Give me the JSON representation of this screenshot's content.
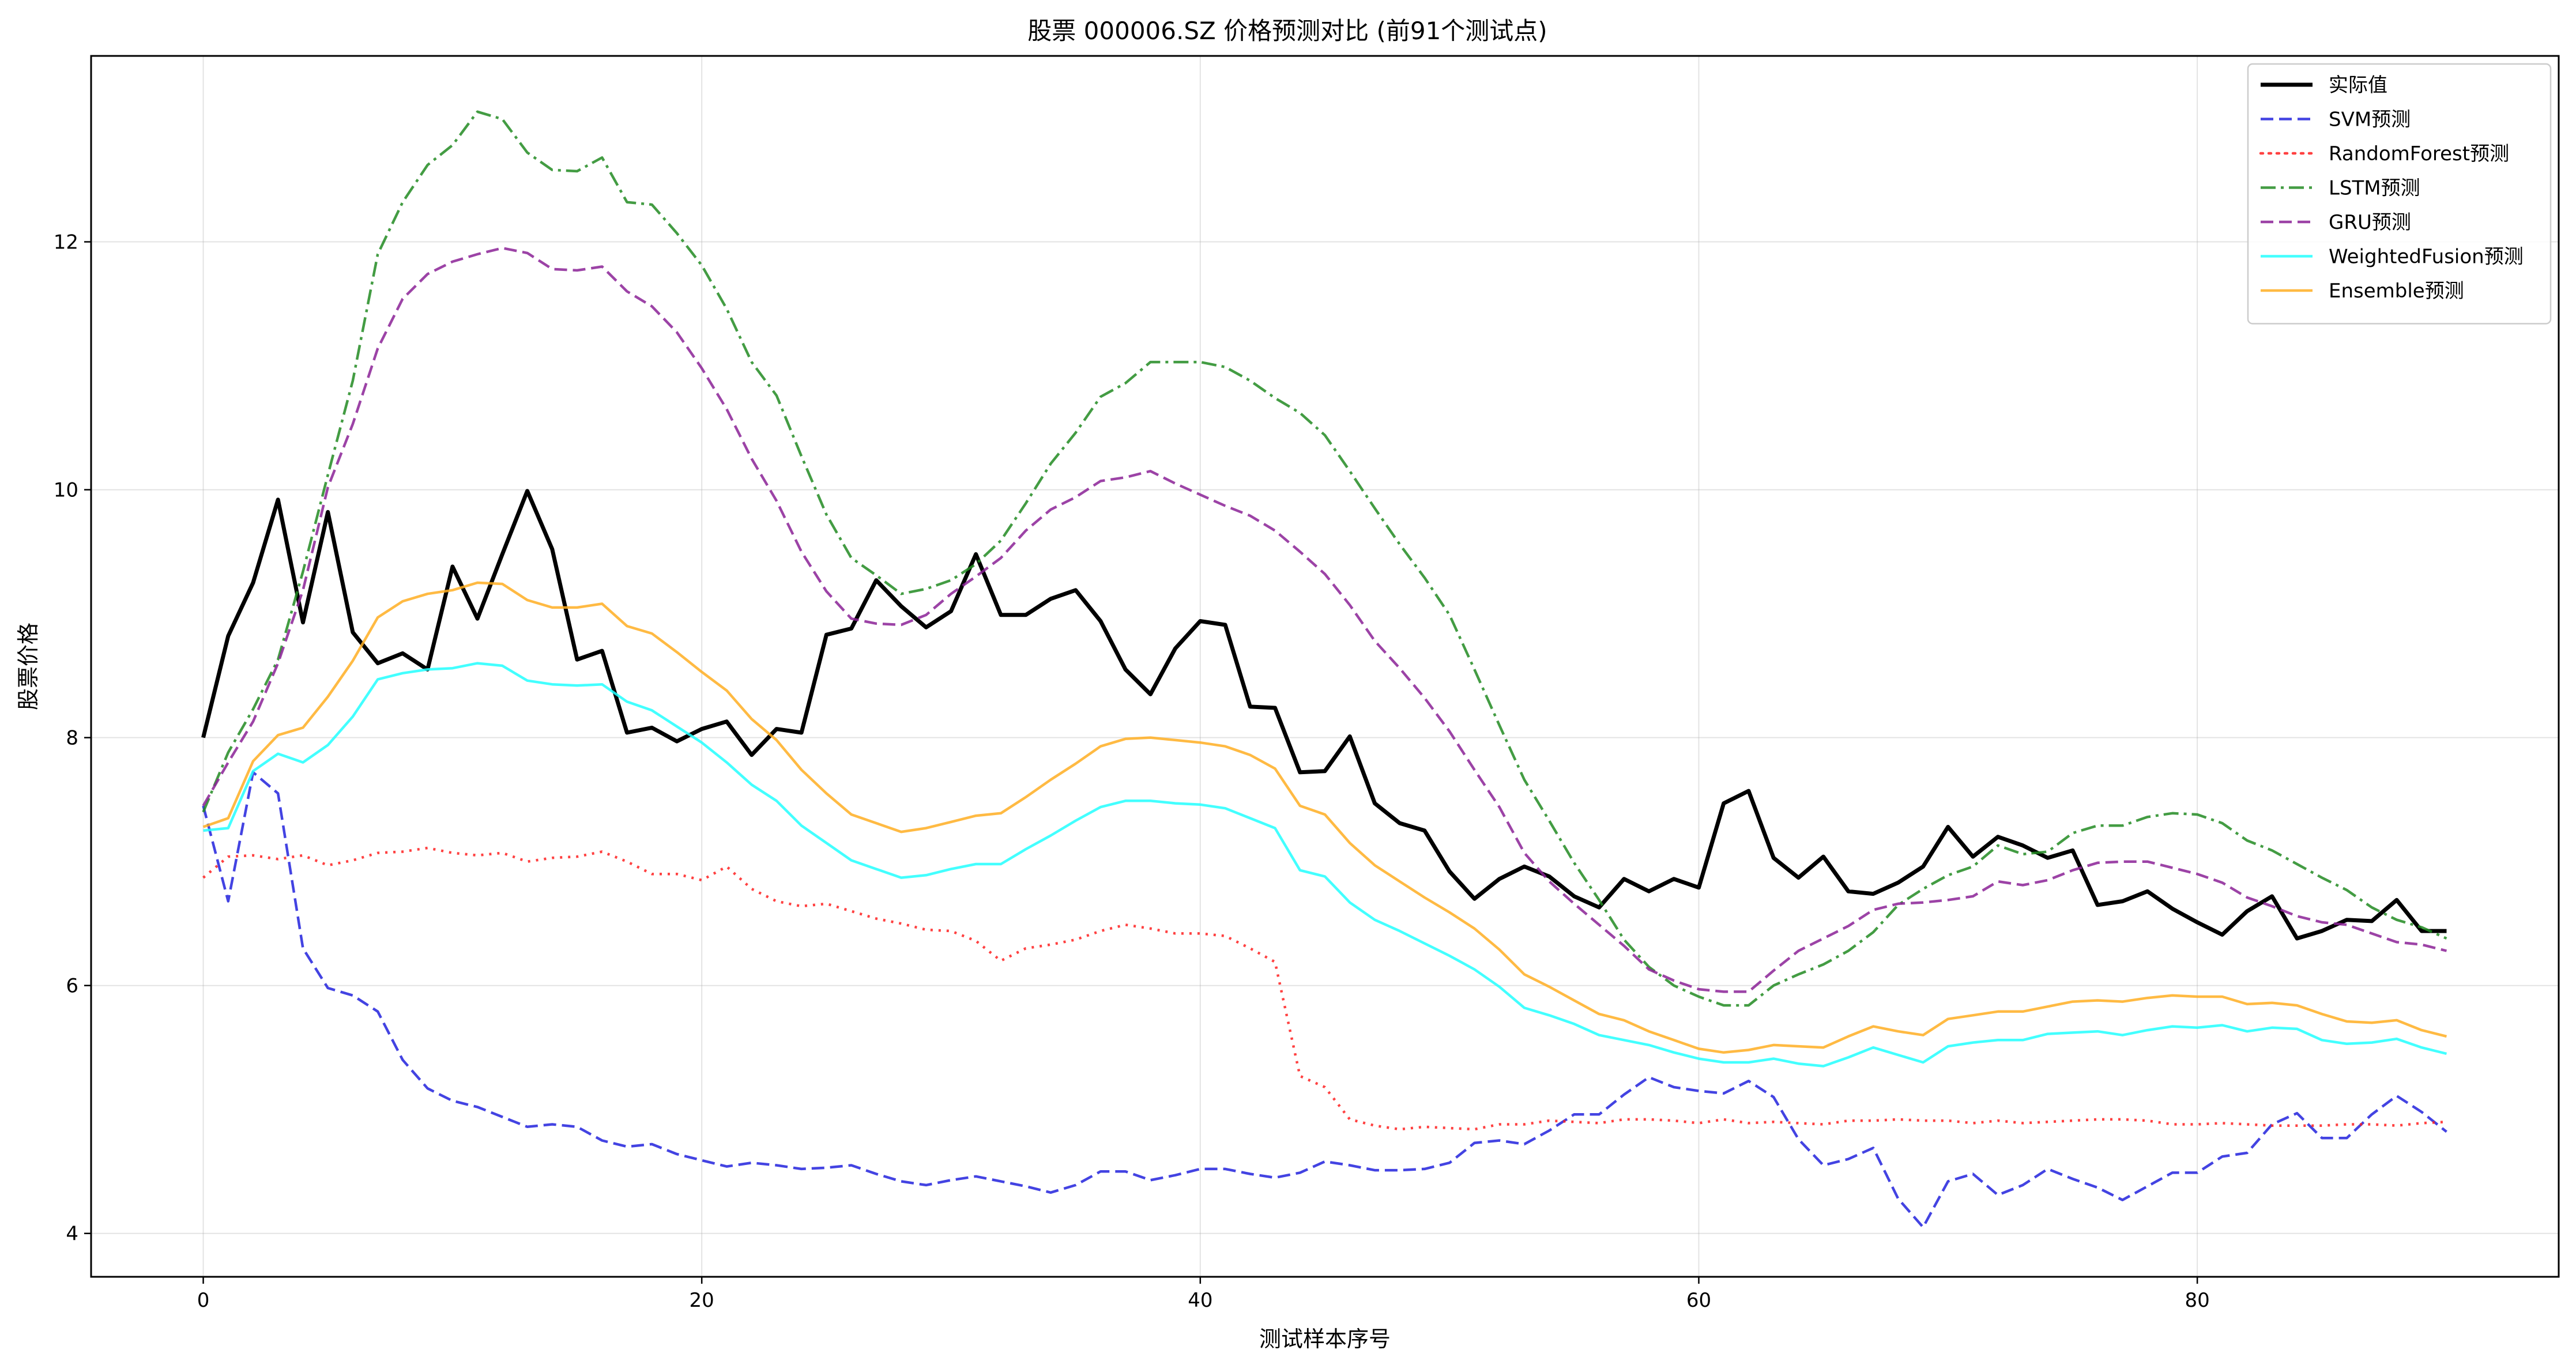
{
  "chart_data": {
    "type": "line",
    "title": "股票 000006.SZ 价格预测对比 (前91个测试点)",
    "xlabel": "测试样本序号",
    "ylabel": "股票价格",
    "xlim": [
      -4.5,
      94.5
    ],
    "ylim": [
      3.65,
      13.5
    ],
    "xticks": [
      0,
      20,
      40,
      60,
      80
    ],
    "yticks": [
      4,
      6,
      8,
      10,
      12
    ],
    "grid": true,
    "legend_position": "top-right",
    "series": [
      {
        "name": "实际值",
        "color": "#000000",
        "dash": "solid",
        "weight": "bold",
        "values": [
          8.0,
          8.82,
          9.25,
          9.92,
          8.93,
          9.82,
          8.85,
          8.6,
          8.68,
          8.55,
          9.38,
          8.96,
          9.48,
          9.99,
          9.52,
          8.63,
          8.7,
          8.04,
          8.08,
          7.97,
          8.07,
          8.13,
          7.86,
          8.07,
          8.04,
          8.83,
          8.88,
          9.27,
          9.06,
          8.89,
          9.02,
          9.48,
          8.99,
          8.99,
          9.12,
          9.19,
          8.94,
          8.55,
          8.35,
          8.72,
          8.94,
          8.91,
          8.25,
          8.24,
          7.72,
          7.73,
          8.01,
          7.47,
          7.31,
          7.25,
          6.92,
          6.7,
          6.86,
          6.96,
          6.88,
          6.72,
          6.63,
          6.86,
          6.76,
          6.86,
          6.79,
          7.47,
          7.57,
          7.03,
          6.87,
          7.04,
          6.76,
          6.74,
          6.83,
          6.96,
          7.28,
          7.04,
          7.2,
          7.13,
          7.03,
          7.09,
          6.65,
          6.68,
          6.76,
          6.62,
          6.51,
          6.41,
          6.6,
          6.72,
          6.38,
          6.44,
          6.53,
          6.52,
          6.69,
          6.44,
          6.44
        ]
      },
      {
        "name": "SVM预测",
        "color": "#2222dd",
        "dash": "dashed",
        "weight": "normal",
        "values": [
          7.45,
          6.68,
          7.72,
          7.55,
          6.3,
          5.98,
          5.92,
          5.79,
          5.4,
          5.17,
          5.07,
          5.02,
          4.94,
          4.86,
          4.88,
          4.86,
          4.75,
          4.7,
          4.72,
          4.64,
          4.59,
          4.54,
          4.57,
          4.55,
          4.52,
          4.53,
          4.55,
          4.48,
          4.42,
          4.39,
          4.43,
          4.46,
          4.42,
          4.38,
          4.33,
          4.39,
          4.5,
          4.5,
          4.43,
          4.47,
          4.52,
          4.52,
          4.48,
          4.45,
          4.49,
          4.58,
          4.55,
          4.51,
          4.51,
          4.52,
          4.57,
          4.73,
          4.75,
          4.72,
          4.83,
          4.96,
          4.96,
          5.12,
          5.26,
          5.18,
          5.15,
          5.13,
          5.23,
          5.1,
          4.76,
          4.55,
          4.6,
          4.69,
          4.28,
          4.05,
          4.42,
          4.48,
          4.31,
          4.39,
          4.52,
          4.44,
          4.37,
          4.27,
          4.38,
          4.49,
          4.49,
          4.62,
          4.65,
          4.88,
          4.97,
          4.77,
          4.77,
          4.96,
          5.11,
          4.98,
          4.82
        ]
      },
      {
        "name": "RandomForest预测",
        "color": "#ff2020",
        "dash": "dotted",
        "weight": "normal",
        "values": [
          6.87,
          7.04,
          7.05,
          7.02,
          7.05,
          6.97,
          7.01,
          7.07,
          7.08,
          7.11,
          7.07,
          7.05,
          7.07,
          7.0,
          7.03,
          7.04,
          7.08,
          7.0,
          6.9,
          6.9,
          6.85,
          6.96,
          6.78,
          6.68,
          6.64,
          6.66,
          6.6,
          6.54,
          6.5,
          6.45,
          6.44,
          6.36,
          6.2,
          6.3,
          6.33,
          6.37,
          6.44,
          6.49,
          6.46,
          6.42,
          6.42,
          6.4,
          6.3,
          6.19,
          5.27,
          5.18,
          4.92,
          4.87,
          4.84,
          4.86,
          4.85,
          4.84,
          4.88,
          4.88,
          4.91,
          4.9,
          4.89,
          4.92,
          4.92,
          4.91,
          4.89,
          4.92,
          4.89,
          4.9,
          4.89,
          4.88,
          4.91,
          4.91,
          4.92,
          4.91,
          4.91,
          4.89,
          4.91,
          4.89,
          4.9,
          4.91,
          4.92,
          4.92,
          4.91,
          4.88,
          4.88,
          4.89,
          4.88,
          4.87,
          4.87,
          4.87,
          4.88,
          4.88,
          4.87,
          4.89,
          4.9
        ]
      },
      {
        "name": "LSTM预测",
        "color": "#228b22",
        "dash": "dashdot",
        "weight": "normal",
        "values": [
          7.4,
          7.88,
          8.23,
          8.63,
          9.34,
          10.12,
          10.88,
          11.9,
          12.32,
          12.62,
          12.78,
          13.05,
          12.99,
          12.72,
          12.58,
          12.57,
          12.68,
          12.32,
          12.3,
          12.07,
          11.81,
          11.46,
          11.03,
          10.76,
          10.27,
          9.8,
          9.45,
          9.31,
          9.16,
          9.2,
          9.27,
          9.4,
          9.59,
          9.89,
          10.21,
          10.46,
          10.75,
          10.86,
          11.03,
          11.03,
          11.03,
          10.99,
          10.88,
          10.74,
          10.62,
          10.44,
          10.15,
          9.85,
          9.56,
          9.29,
          8.99,
          8.55,
          8.1,
          7.66,
          7.33,
          6.99,
          6.69,
          6.37,
          6.15,
          6.0,
          5.91,
          5.84,
          5.84,
          6.0,
          6.09,
          6.17,
          6.28,
          6.43,
          6.65,
          6.78,
          6.89,
          6.96,
          7.13,
          7.06,
          7.08,
          7.23,
          7.29,
          7.29,
          7.36,
          7.39,
          7.38,
          7.31,
          7.17,
          7.09,
          6.98,
          6.87,
          6.77,
          6.63,
          6.53,
          6.47,
          6.38
        ]
      },
      {
        "name": "GRU预测",
        "color": "#8b2296",
        "dash": "dashed",
        "weight": "normal",
        "values": [
          7.45,
          7.8,
          8.13,
          8.6,
          9.19,
          10.02,
          10.53,
          11.14,
          11.54,
          11.74,
          11.84,
          11.9,
          11.95,
          11.91,
          11.78,
          11.77,
          11.8,
          11.6,
          11.48,
          11.27,
          10.98,
          10.65,
          10.25,
          9.91,
          9.5,
          9.18,
          8.96,
          8.92,
          8.91,
          8.99,
          9.16,
          9.3,
          9.45,
          9.67,
          9.84,
          9.94,
          10.07,
          10.1,
          10.15,
          10.05,
          9.96,
          9.87,
          9.79,
          9.67,
          9.5,
          9.32,
          9.07,
          8.78,
          8.56,
          8.32,
          8.05,
          7.74,
          7.44,
          7.07,
          6.84,
          6.66,
          6.49,
          6.32,
          6.13,
          6.04,
          5.97,
          5.95,
          5.95,
          6.12,
          6.28,
          6.38,
          6.48,
          6.61,
          6.66,
          6.67,
          6.69,
          6.72,
          6.84,
          6.81,
          6.85,
          6.93,
          6.99,
          7.0,
          7.0,
          6.95,
          6.9,
          6.83,
          6.71,
          6.64,
          6.56,
          6.51,
          6.49,
          6.42,
          6.35,
          6.33,
          6.28
        ]
      },
      {
        "name": "WeightedFusion预测",
        "color": "#22ffff",
        "dash": "solid",
        "weight": "normal",
        "values": [
          7.25,
          7.27,
          7.73,
          7.87,
          7.8,
          7.94,
          8.17,
          8.47,
          8.52,
          8.55,
          8.56,
          8.6,
          8.58,
          8.46,
          8.43,
          8.42,
          8.43,
          8.29,
          8.22,
          8.09,
          7.96,
          7.8,
          7.62,
          7.49,
          7.29,
          7.15,
          7.01,
          6.94,
          6.87,
          6.89,
          6.94,
          6.98,
          6.98,
          7.1,
          7.21,
          7.33,
          7.44,
          7.49,
          7.49,
          7.47,
          7.46,
          7.43,
          7.35,
          7.27,
          6.93,
          6.88,
          6.67,
          6.53,
          6.44,
          6.34,
          6.24,
          6.13,
          5.99,
          5.82,
          5.76,
          5.69,
          5.6,
          5.56,
          5.52,
          5.46,
          5.41,
          5.38,
          5.38,
          5.41,
          5.37,
          5.35,
          5.42,
          5.5,
          5.44,
          5.38,
          5.51,
          5.54,
          5.56,
          5.56,
          5.61,
          5.62,
          5.63,
          5.6,
          5.64,
          5.67,
          5.66,
          5.68,
          5.63,
          5.66,
          5.65,
          5.56,
          5.53,
          5.54,
          5.57,
          5.5,
          5.45
        ]
      },
      {
        "name": "Ensemble预测",
        "color": "#ffae22",
        "dash": "solid",
        "weight": "normal",
        "values": [
          7.28,
          7.35,
          7.81,
          8.02,
          8.08,
          8.33,
          8.62,
          8.97,
          9.1,
          9.16,
          9.19,
          9.25,
          9.24,
          9.11,
          9.05,
          9.05,
          9.08,
          8.9,
          8.84,
          8.69,
          8.53,
          8.38,
          8.15,
          7.98,
          7.74,
          7.55,
          7.38,
          7.31,
          7.24,
          7.27,
          7.32,
          7.37,
          7.39,
          7.52,
          7.66,
          7.79,
          7.93,
          7.99,
          8.0,
          7.98,
          7.96,
          7.93,
          7.86,
          7.75,
          7.45,
          7.38,
          7.15,
          6.97,
          6.84,
          6.71,
          6.59,
          6.46,
          6.29,
          6.09,
          5.99,
          5.88,
          5.77,
          5.72,
          5.63,
          5.56,
          5.49,
          5.46,
          5.48,
          5.52,
          5.51,
          5.5,
          5.59,
          5.67,
          5.63,
          5.6,
          5.73,
          5.76,
          5.79,
          5.79,
          5.83,
          5.87,
          5.88,
          5.87,
          5.9,
          5.92,
          5.91,
          5.91,
          5.85,
          5.86,
          5.84,
          5.77,
          5.71,
          5.7,
          5.72,
          5.64,
          5.59
        ]
      }
    ]
  }
}
